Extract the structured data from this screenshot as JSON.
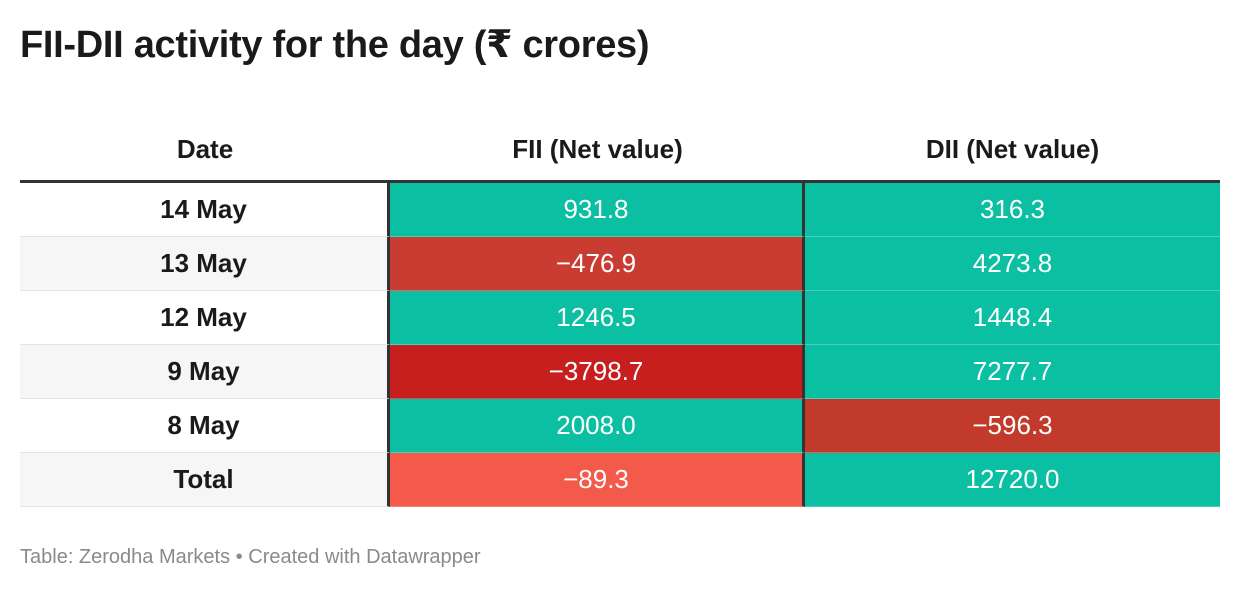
{
  "title": "FII-DII activity for the day (₹ crores)",
  "footer": {
    "source_label": "Table: Zerodha Markets",
    "separator": "•",
    "credit": "Created with Datawrapper"
  },
  "colors": {
    "positive": "#0bbfa2",
    "negative_strong": "#c71e1e",
    "negative_medium": "#c93c32",
    "negative_mid": "#c23a2c",
    "negative_light": "#f45a4a"
  },
  "chart_data": {
    "type": "table",
    "title": "FII-DII activity for the day (₹ crores)",
    "columns": [
      "Date",
      "FII (Net value)",
      "DII (Net value)"
    ],
    "rows": [
      {
        "date": "14 May",
        "fii": "931.8",
        "dii": "316.3",
        "fii_value": 931.8,
        "dii_value": 316.3
      },
      {
        "date": "13 May",
        "fii": "−476.9",
        "dii": "4273.8",
        "fii_value": -476.9,
        "dii_value": 4273.8
      },
      {
        "date": "12 May",
        "fii": "1246.5",
        "dii": "1448.4",
        "fii_value": 1246.5,
        "dii_value": 1448.4
      },
      {
        "date": "9 May",
        "fii": "−3798.7",
        "dii": "7277.7",
        "fii_value": -3798.7,
        "dii_value": 7277.7
      },
      {
        "date": "8 May",
        "fii": "2008.0",
        "dii": "−596.3",
        "fii_value": 2008.0,
        "dii_value": -596.3
      },
      {
        "date": "Total",
        "fii": "−89.3",
        "dii": "12720.0",
        "fii_value": -89.3,
        "dii_value": 12720.0
      }
    ],
    "cell_colors": [
      {
        "fii": "#0bbfa2",
        "dii": "#0bbfa2"
      },
      {
        "fii": "#c93c32",
        "dii": "#0bbfa2"
      },
      {
        "fii": "#0bbfa2",
        "dii": "#0bbfa2"
      },
      {
        "fii": "#c71e1e",
        "dii": "#0bbfa2"
      },
      {
        "fii": "#0bbfa2",
        "dii": "#c23a2c"
      },
      {
        "fii": "#f45a4a",
        "dii": "#0bbfa2"
      }
    ]
  }
}
